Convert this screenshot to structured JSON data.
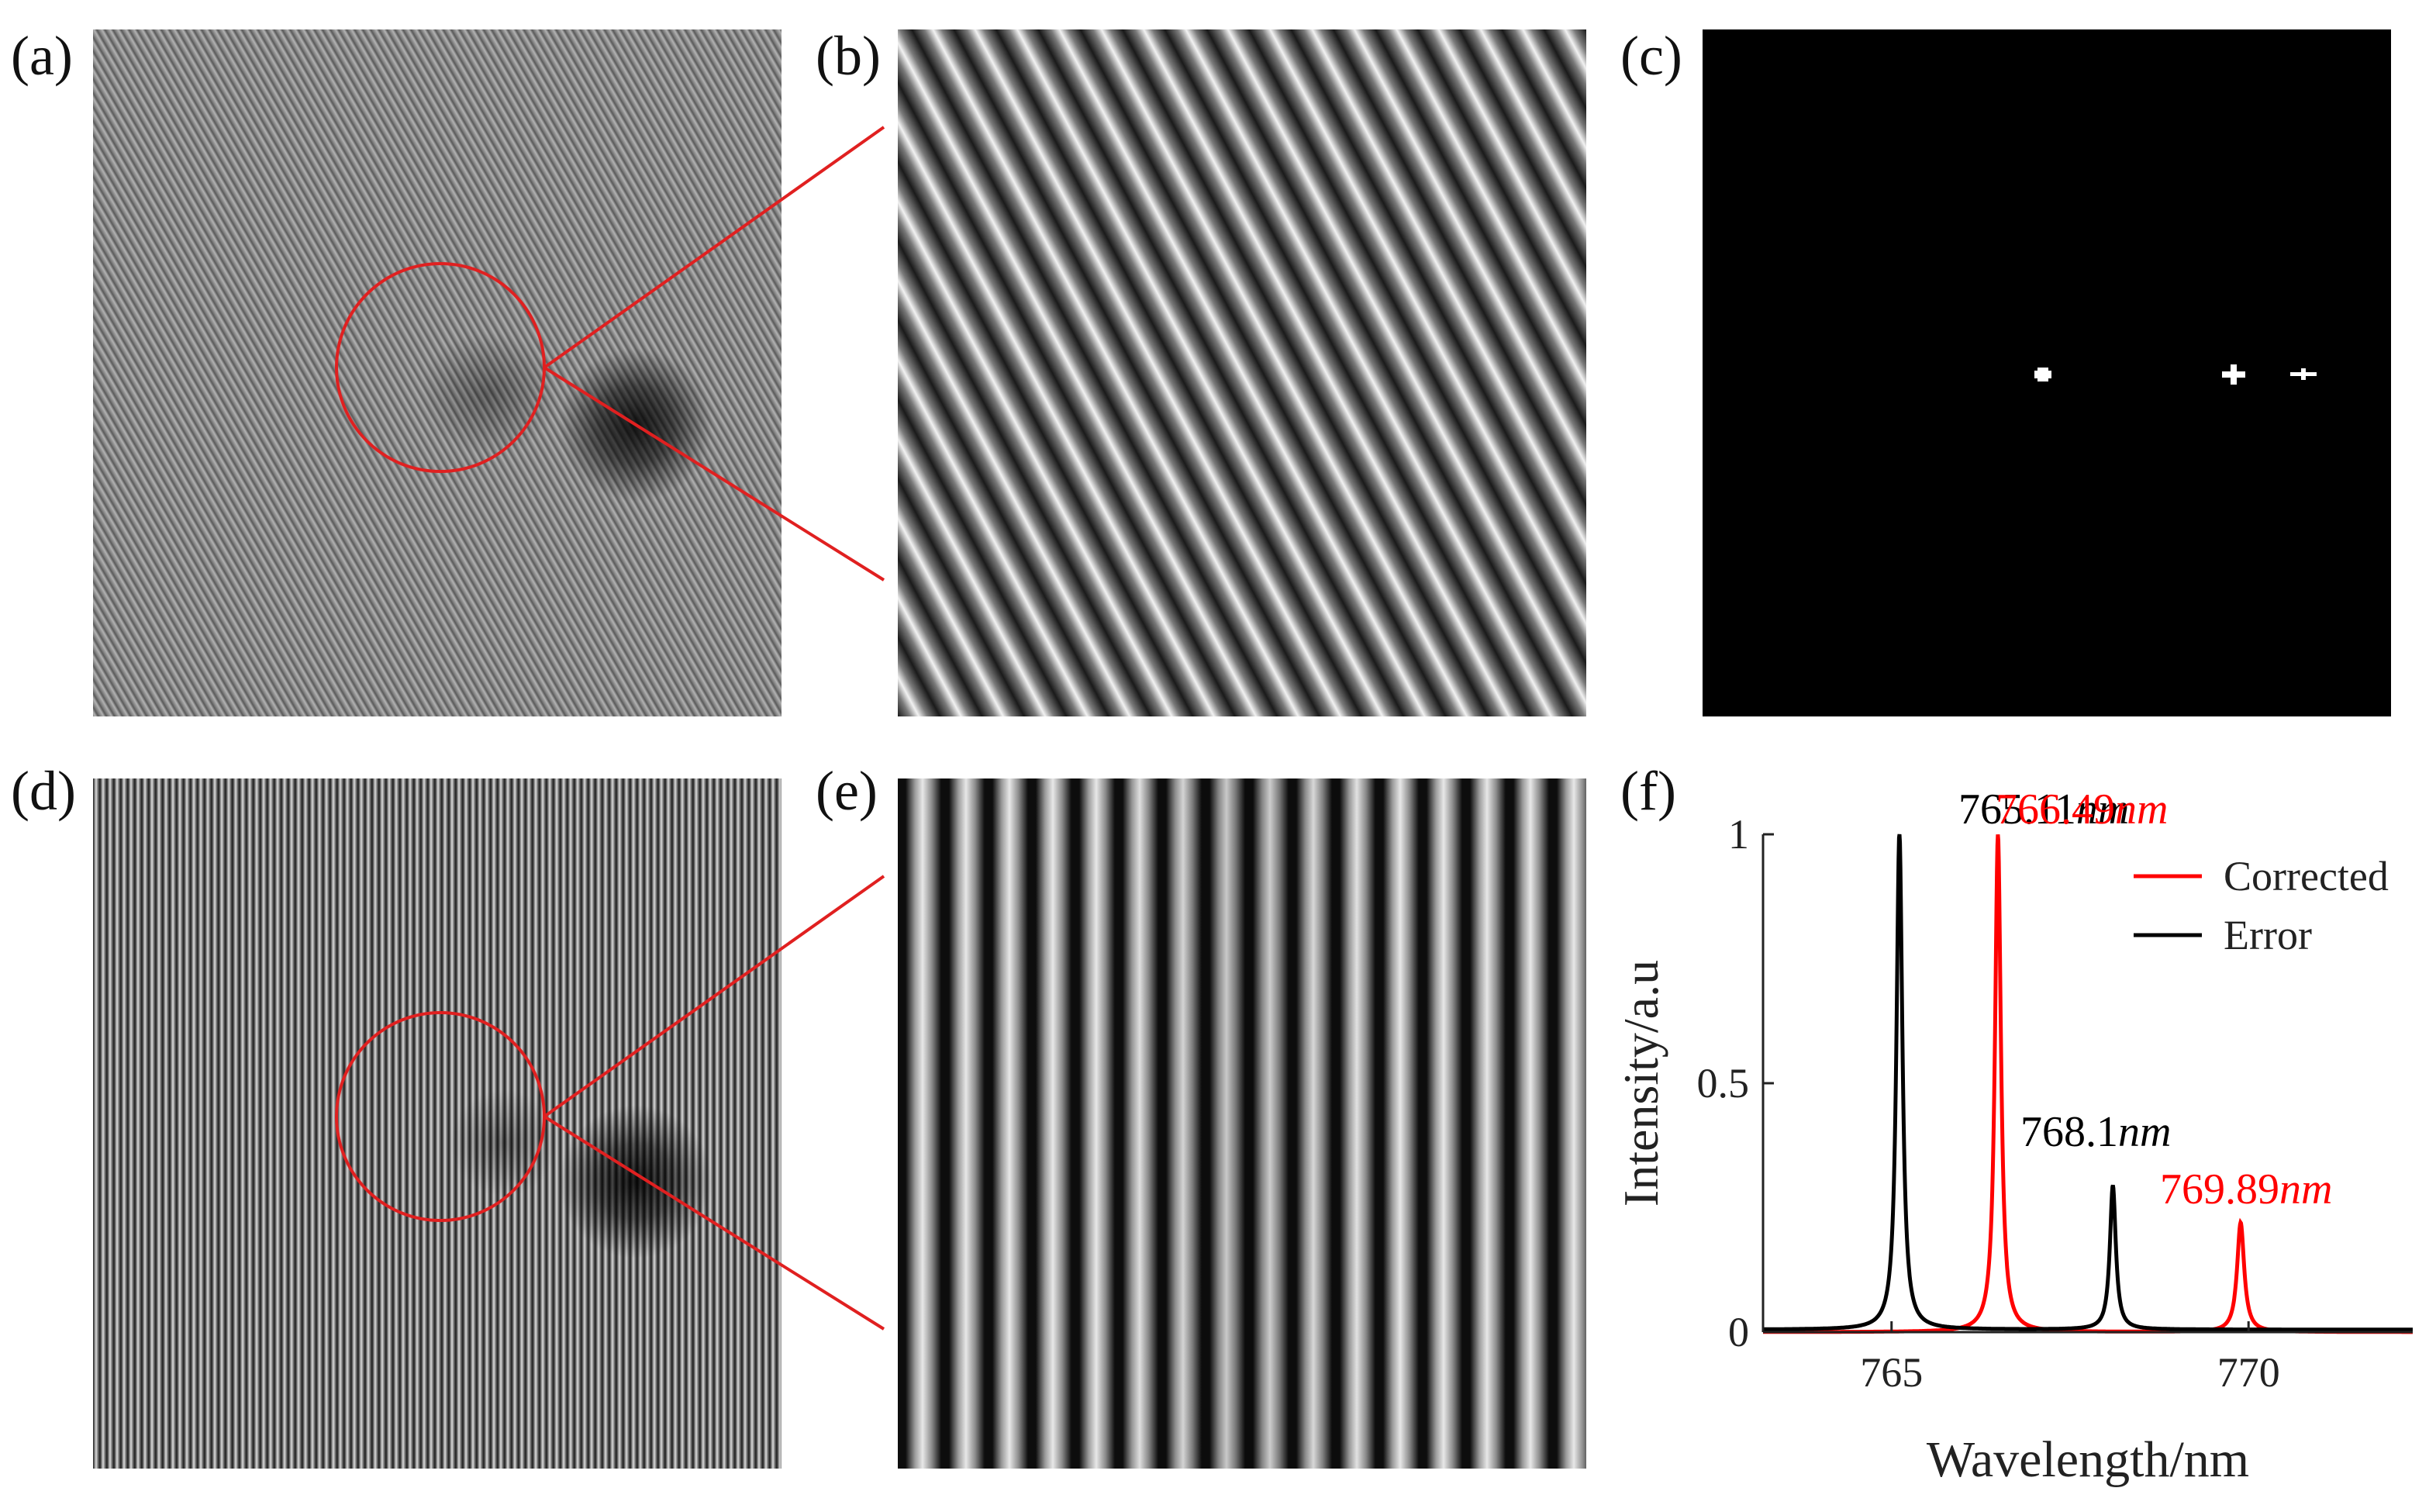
{
  "panel_labels": {
    "a": "(a)",
    "b": "(b)",
    "c": "(c)",
    "d": "(d)",
    "e": "(e)",
    "f": "(f)"
  },
  "colors": {
    "corrected": "#ff0000",
    "error": "#000000",
    "zoom_marker": "#e02020"
  },
  "icons": {
    "zoom_circle": "circle-outline-icon"
  },
  "chart_data": {
    "type": "line",
    "xlabel": "Wavelength/nm",
    "ylabel": "Intensity/a.u",
    "xlim": [
      763.2,
      772.3
    ],
    "ylim": [
      0,
      1.0
    ],
    "xticks": [
      765,
      770
    ],
    "xtick_labels": [
      "765",
      "770"
    ],
    "yticks": [
      0,
      0.5,
      1
    ],
    "ytick_labels": [
      "0",
      "0.5",
      "1"
    ],
    "legend": {
      "placement": "top-right",
      "entries": [
        "Corrected",
        "Error"
      ]
    },
    "series": [
      {
        "name": "Corrected",
        "color": "#ff0000",
        "peaks": [
          {
            "center": 766.49,
            "height": 1.0,
            "width": 0.05
          },
          {
            "center": 769.89,
            "height": 0.22,
            "width": 0.06
          }
        ],
        "baseline": 0.0
      },
      {
        "name": "Error",
        "color": "#000000",
        "peaks": [
          {
            "center": 765.11,
            "height": 1.0,
            "width": 0.05
          },
          {
            "center": 768.1,
            "height": 0.29,
            "width": 0.05
          }
        ],
        "baseline": 0.005
      }
    ],
    "annotations": [
      {
        "text_value": "765.11",
        "text_unit": "nm",
        "color": "#000000"
      },
      {
        "text_value": "766.49",
        "text_unit": "nm",
        "color": "#ff0000"
      },
      {
        "text_value": "768.1",
        "text_unit": "nm",
        "color": "#000000"
      },
      {
        "text_value": "769.89",
        "text_unit": "nm",
        "color": "#ff0000"
      }
    ]
  }
}
